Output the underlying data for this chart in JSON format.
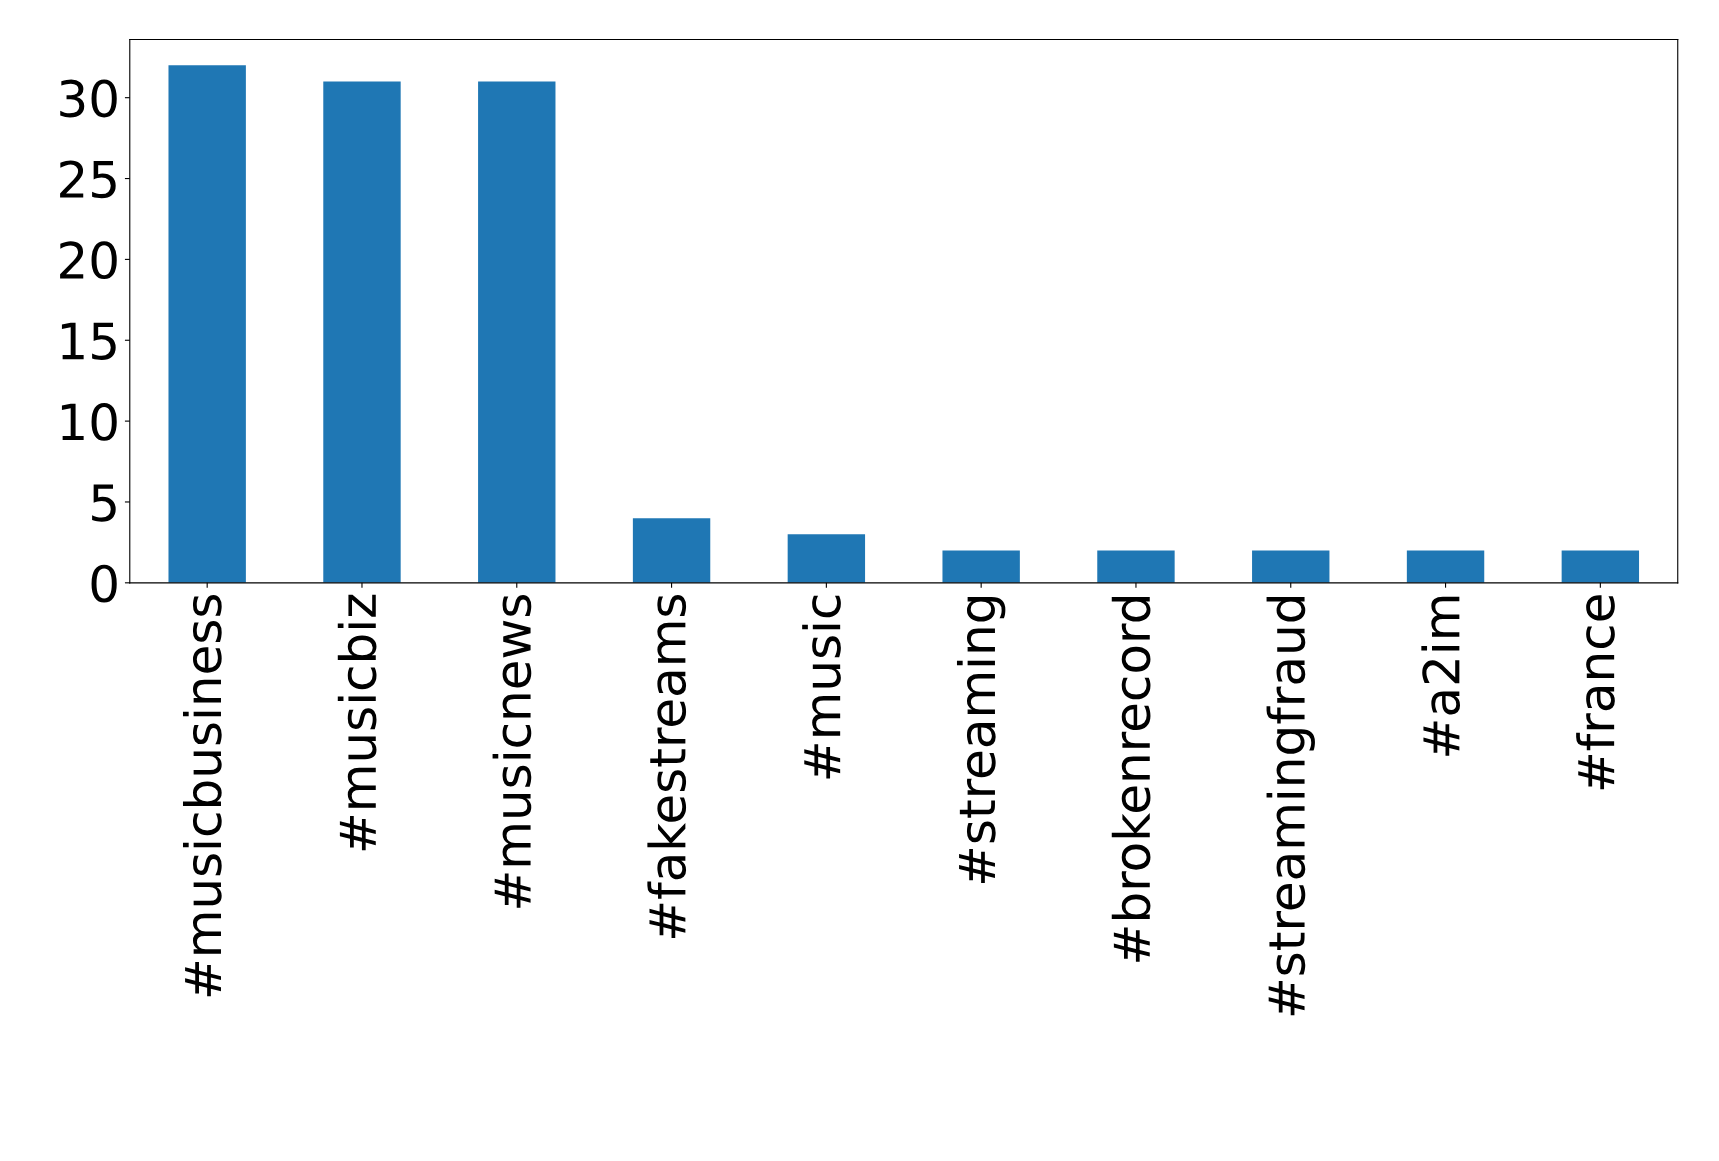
{
  "chart_data": {
    "type": "bar",
    "categories": [
      "#musicbusiness",
      "#musicbiz",
      "#musicnews",
      "#fakestreams",
      "#music",
      "#streaming",
      "#brokenrecord",
      "#streamingfraud",
      "#a2im",
      "#france"
    ],
    "values": [
      32,
      31,
      31,
      4,
      3,
      2,
      2,
      2,
      2,
      2
    ],
    "color": "#1f77b4",
    "ylim": [
      0,
      33.6
    ],
    "yticks": [
      0,
      5,
      10,
      15,
      20,
      25,
      30
    ],
    "grid": false
  }
}
